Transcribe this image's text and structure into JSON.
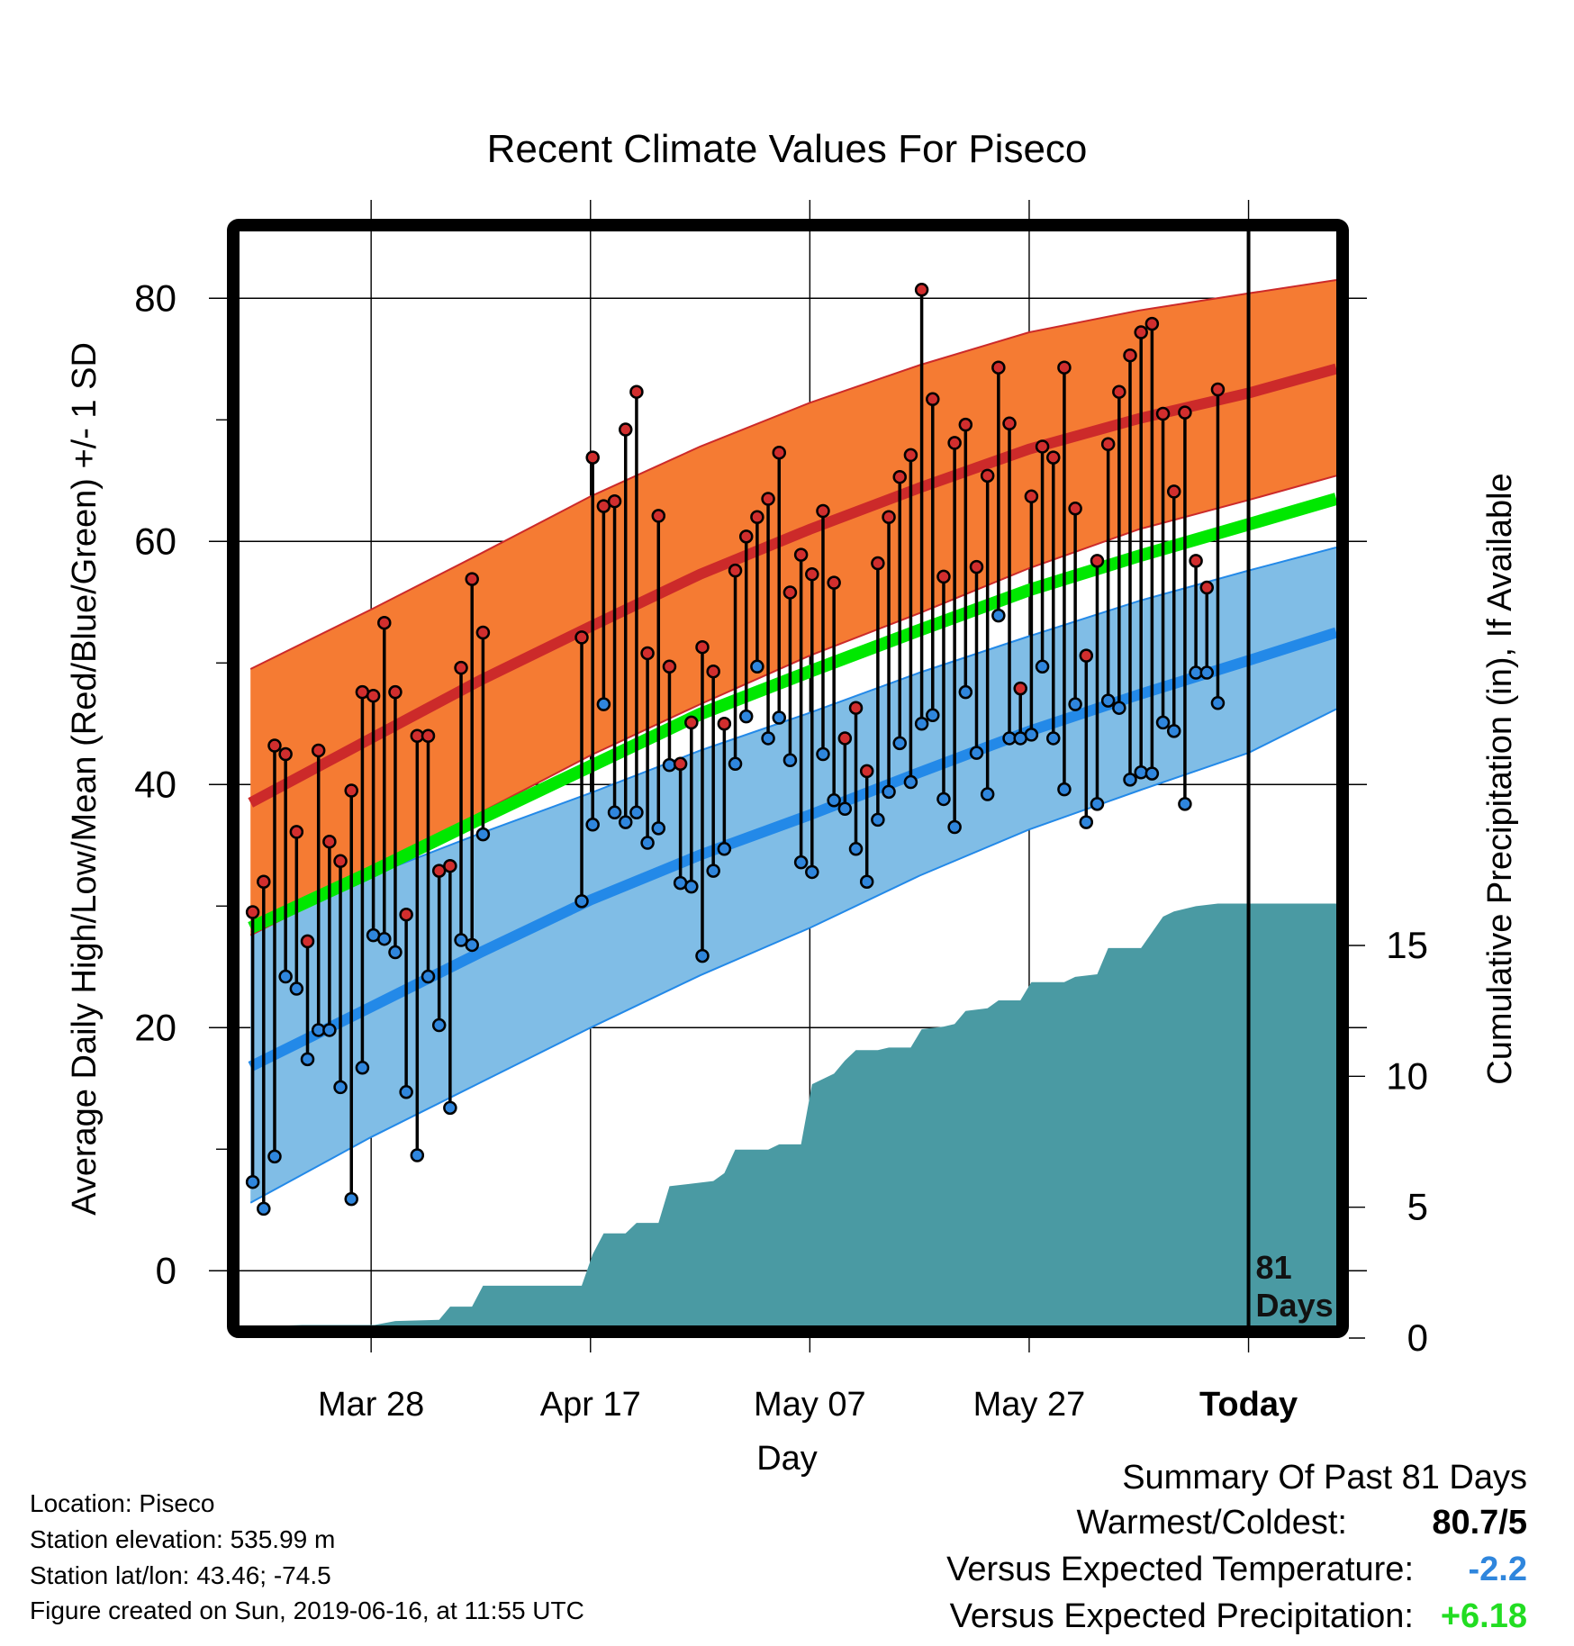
{
  "chart_data": {
    "type": "line",
    "title": "Recent Climate Values For Piseco",
    "xlabel": "Day",
    "ylabel": "Average Daily High/Low/Mean (Red/Blue/Green) +/- 1 SD",
    "y2label": "Cumulative Precipitation (in), If Available",
    "x_range_days": [
      -92,
      8
    ],
    "ylim": [
      -4.5,
      85.5
    ],
    "y2lim": [
      0,
      20
    ],
    "x_ticks": [
      {
        "day": -80,
        "label": "Mar 28"
      },
      {
        "day": -60,
        "label": "Apr 17"
      },
      {
        "day": -40,
        "label": "May 07"
      },
      {
        "day": -20,
        "label": "May 27"
      },
      {
        "day": 0,
        "label": "Today"
      }
    ],
    "y_ticks": [
      0,
      20,
      40,
      60,
      80
    ],
    "y_minor_ticks": [
      10,
      30,
      50,
      70
    ],
    "y2_ticks": [
      0,
      5,
      10,
      15
    ],
    "grid": true,
    "today_annotation": "81\nDays",
    "normal_high": [
      {
        "day": -91,
        "mean": 38.5,
        "sd_low": 27.6,
        "sd_high": 49.5
      },
      {
        "day": -80,
        "mean": 43.8,
        "sd_low": 32.6,
        "sd_high": 54.4
      },
      {
        "day": -70,
        "mean": 48.6,
        "sd_low": 37.7,
        "sd_high": 59.0
      },
      {
        "day": -60,
        "mean": 53.0,
        "sd_low": 42.4,
        "sd_high": 63.7
      },
      {
        "day": -50,
        "mean": 57.3,
        "sd_low": 46.6,
        "sd_high": 67.8
      },
      {
        "day": -40,
        "mean": 61.0,
        "sd_low": 50.6,
        "sd_high": 71.4
      },
      {
        "day": -30,
        "mean": 64.4,
        "sd_low": 54.1,
        "sd_high": 74.5
      },
      {
        "day": -20,
        "mean": 67.6,
        "sd_low": 57.8,
        "sd_high": 77.2
      },
      {
        "day": -10,
        "mean": 70.1,
        "sd_low": 61.0,
        "sd_high": 79.0
      },
      {
        "day": 0,
        "mean": 72.2,
        "sd_low": 63.4,
        "sd_high": 80.4
      },
      {
        "day": 8,
        "mean": 74.2,
        "sd_low": 65.4,
        "sd_high": 81.5
      }
    ],
    "normal_low": [
      {
        "day": -91,
        "mean": 16.8,
        "sd_low": 5.6,
        "sd_high": 27.9
      },
      {
        "day": -80,
        "mean": 21.7,
        "sd_low": 11.0,
        "sd_high": 32.5
      },
      {
        "day": -70,
        "mean": 26.2,
        "sd_low": 15.5,
        "sd_high": 36.0
      },
      {
        "day": -60,
        "mean": 30.5,
        "sd_low": 20.0,
        "sd_high": 39.3
      },
      {
        "day": -50,
        "mean": 34.2,
        "sd_low": 24.3,
        "sd_high": 42.8
      },
      {
        "day": -40,
        "mean": 37.5,
        "sd_low": 28.2,
        "sd_high": 45.9
      },
      {
        "day": -30,
        "mean": 41.0,
        "sd_low": 32.5,
        "sd_high": 49.2
      },
      {
        "day": -20,
        "mean": 44.4,
        "sd_low": 36.3,
        "sd_high": 52.2
      },
      {
        "day": -10,
        "mean": 47.4,
        "sd_low": 39.5,
        "sd_high": 55.1
      },
      {
        "day": 0,
        "mean": 50.2,
        "sd_low": 42.6,
        "sd_high": 57.6
      },
      {
        "day": 8,
        "mean": 52.5,
        "sd_low": 46.2,
        "sd_high": 59.5
      }
    ],
    "normal_mean": [
      {
        "day": -91,
        "value": 28.2
      },
      {
        "day": -80,
        "value": 32.8
      },
      {
        "day": -70,
        "value": 37.2
      },
      {
        "day": -60,
        "value": 41.5
      },
      {
        "day": -50,
        "value": 45.8
      },
      {
        "day": -40,
        "value": 49.3
      },
      {
        "day": -30,
        "value": 52.7
      },
      {
        "day": -20,
        "value": 56.0
      },
      {
        "day": -10,
        "value": 58.8
      },
      {
        "day": 0,
        "value": 61.4
      },
      {
        "day": 8,
        "value": 63.5
      }
    ],
    "daily": [
      {
        "day": -90.8,
        "high": 29.5,
        "low": 7.3
      },
      {
        "day": -89.8,
        "high": 32.0,
        "low": 5.1
      },
      {
        "day": -88.8,
        "high": 43.2,
        "low": 9.4
      },
      {
        "day": -87.8,
        "high": 42.5,
        "low": 24.2
      },
      {
        "day": -86.8,
        "high": 36.1,
        "low": 23.2
      },
      {
        "day": -85.8,
        "high": 27.1,
        "low": 17.4
      },
      {
        "day": -84.8,
        "high": 42.8,
        "low": 19.8
      },
      {
        "day": -83.8,
        "high": 35.3,
        "low": 19.8
      },
      {
        "day": -82.8,
        "high": 33.7,
        "low": 15.1
      },
      {
        "day": -81.8,
        "high": 39.5,
        "low": 5.9
      },
      {
        "day": -80.8,
        "high": 47.6,
        "low": 16.7
      },
      {
        "day": -79.8,
        "high": 47.3,
        "low": 27.6
      },
      {
        "day": -78.8,
        "high": 53.3,
        "low": 27.3
      },
      {
        "day": -77.8,
        "high": 47.6,
        "low": 26.2
      },
      {
        "day": -76.8,
        "high": 29.3,
        "low": 14.7
      },
      {
        "day": -75.8,
        "high": 44.0,
        "low": 9.5
      },
      {
        "day": -74.8,
        "high": 44.0,
        "low": 24.2
      },
      {
        "day": -73.8,
        "high": 32.9,
        "low": 20.2
      },
      {
        "day": -72.8,
        "high": 33.3,
        "low": 13.4
      },
      {
        "day": -71.8,
        "high": 49.6,
        "low": 27.2
      },
      {
        "day": -70.8,
        "high": 56.9,
        "low": 26.8
      },
      {
        "day": -69.8,
        "high": 52.5,
        "low": 35.9
      },
      {
        "day": -60.8,
        "high": 52.1,
        "low": 30.4
      },
      {
        "day": -59.8,
        "high": 66.9,
        "low": 36.7
      },
      {
        "day": -58.8,
        "high": 62.9,
        "low": 46.6
      },
      {
        "day": -57.8,
        "high": 63.3,
        "low": 37.7
      },
      {
        "day": -56.8,
        "high": 69.2,
        "low": 36.9
      },
      {
        "day": -55.8,
        "high": 72.3,
        "low": 37.7
      },
      {
        "day": -54.8,
        "high": 50.8,
        "low": 35.2
      },
      {
        "day": -53.8,
        "high": 62.1,
        "low": 36.4
      },
      {
        "day": -52.8,
        "high": 49.7,
        "low": 41.6
      },
      {
        "day": -51.8,
        "high": 41.7,
        "low": 31.9
      },
      {
        "day": -50.8,
        "high": 45.1,
        "low": 31.6
      },
      {
        "day": -49.8,
        "high": 51.3,
        "low": 25.9
      },
      {
        "day": -48.8,
        "high": 49.3,
        "low": 32.9
      },
      {
        "day": -47.8,
        "high": 45.0,
        "low": 34.7
      },
      {
        "day": -46.8,
        "high": 57.6,
        "low": 41.7
      },
      {
        "day": -45.8,
        "high": 60.4,
        "low": 45.6
      },
      {
        "day": -44.8,
        "high": 62.0,
        "low": 49.7
      },
      {
        "day": -43.8,
        "high": 63.5,
        "low": 43.8
      },
      {
        "day": -42.8,
        "high": 67.3,
        "low": 45.5
      },
      {
        "day": -41.8,
        "high": 55.8,
        "low": 42.0
      },
      {
        "day": -40.8,
        "high": 58.9,
        "low": 33.6
      },
      {
        "day": -39.8,
        "high": 57.3,
        "low": 32.8
      },
      {
        "day": -38.8,
        "high": 62.5,
        "low": 42.5
      },
      {
        "day": -37.8,
        "high": 56.6,
        "low": 38.7
      },
      {
        "day": -36.8,
        "high": 43.8,
        "low": 38.0
      },
      {
        "day": -35.8,
        "high": 46.3,
        "low": 34.7
      },
      {
        "day": -34.8,
        "high": 41.1,
        "low": 32.0
      },
      {
        "day": -33.8,
        "high": 58.2,
        "low": 37.1
      },
      {
        "day": -32.8,
        "high": 62.0,
        "low": 39.4
      },
      {
        "day": -31.8,
        "high": 65.3,
        "low": 43.4
      },
      {
        "day": -30.8,
        "high": 67.1,
        "low": 40.2
      },
      {
        "day": -29.8,
        "high": 80.7,
        "low": 45.0
      },
      {
        "day": -28.8,
        "high": 71.7,
        "low": 45.7
      },
      {
        "day": -27.8,
        "high": 57.1,
        "low": 38.8
      },
      {
        "day": -26.8,
        "high": 68.1,
        "low": 36.5
      },
      {
        "day": -25.8,
        "high": 69.6,
        "low": 47.6
      },
      {
        "day": -24.8,
        "high": 57.9,
        "low": 42.6
      },
      {
        "day": -23.8,
        "high": 65.4,
        "low": 39.2
      },
      {
        "day": -22.8,
        "high": 74.3,
        "low": 53.9
      },
      {
        "day": -21.8,
        "high": 69.7,
        "low": 43.8
      },
      {
        "day": -20.8,
        "high": 47.9,
        "low": 43.8
      },
      {
        "day": -19.8,
        "high": 63.7,
        "low": 44.1
      },
      {
        "day": -18.8,
        "high": 67.8,
        "low": 49.7
      },
      {
        "day": -17.8,
        "high": 66.9,
        "low": 43.8
      },
      {
        "day": -16.8,
        "high": 74.3,
        "low": 39.6
      },
      {
        "day": -15.8,
        "high": 62.7,
        "low": 46.6
      },
      {
        "day": -14.8,
        "high": 50.6,
        "low": 36.9
      },
      {
        "day": -13.8,
        "high": 58.4,
        "low": 38.4
      },
      {
        "day": -12.8,
        "high": 68.0,
        "low": 46.9
      },
      {
        "day": -11.8,
        "high": 72.3,
        "low": 46.3
      },
      {
        "day": -10.8,
        "high": 75.3,
        "low": 40.4
      },
      {
        "day": -9.8,
        "high": 77.2,
        "low": 41.0
      },
      {
        "day": -8.8,
        "high": 77.9,
        "low": 40.9
      },
      {
        "day": -7.8,
        "high": 70.5,
        "low": 45.1
      },
      {
        "day": -6.8,
        "high": 64.1,
        "low": 44.4
      },
      {
        "day": -5.8,
        "high": 70.6,
        "low": 38.4
      },
      {
        "day": -4.8,
        "high": 58.4,
        "low": 49.2
      },
      {
        "day": -3.8,
        "high": 56.2,
        "low": 49.2
      },
      {
        "day": -2.8,
        "high": 72.5,
        "low": 46.7
      }
    ],
    "precip_cumulative": [
      {
        "day": -91,
        "value": 0.0
      },
      {
        "day": -87.5,
        "value": 0.0
      },
      {
        "day": -86.3,
        "value": 0.5
      },
      {
        "day": -79.7,
        "value": 0.5
      },
      {
        "day": -77.8,
        "value": 0.65
      },
      {
        "day": -73.8,
        "value": 0.7
      },
      {
        "day": -72.8,
        "value": 1.2
      },
      {
        "day": -70.8,
        "value": 1.2
      },
      {
        "day": -69.8,
        "value": 2.0
      },
      {
        "day": -60.8,
        "value": 2.0
      },
      {
        "day": -59.8,
        "value": 3.2
      },
      {
        "day": -58.8,
        "value": 4.0
      },
      {
        "day": -56.8,
        "value": 4.0
      },
      {
        "day": -55.8,
        "value": 4.4
      },
      {
        "day": -53.8,
        "value": 4.4
      },
      {
        "day": -52.8,
        "value": 5.8
      },
      {
        "day": -48.8,
        "value": 6.0
      },
      {
        "day": -47.8,
        "value": 6.3
      },
      {
        "day": -46.8,
        "value": 7.2
      },
      {
        "day": -43.8,
        "value": 7.2
      },
      {
        "day": -42.8,
        "value": 7.4
      },
      {
        "day": -40.8,
        "value": 7.4
      },
      {
        "day": -39.8,
        "value": 9.7
      },
      {
        "day": -37.8,
        "value": 10.1
      },
      {
        "day": -36.8,
        "value": 10.6
      },
      {
        "day": -35.8,
        "value": 11.0
      },
      {
        "day": -33.8,
        "value": 11.0
      },
      {
        "day": -32.8,
        "value": 11.1
      },
      {
        "day": -30.8,
        "value": 11.1
      },
      {
        "day": -29.8,
        "value": 11.8
      },
      {
        "day": -27.8,
        "value": 11.9
      },
      {
        "day": -26.8,
        "value": 12.0
      },
      {
        "day": -25.8,
        "value": 12.5
      },
      {
        "day": -23.8,
        "value": 12.6
      },
      {
        "day": -22.8,
        "value": 12.9
      },
      {
        "day": -20.8,
        "value": 12.9
      },
      {
        "day": -19.8,
        "value": 13.6
      },
      {
        "day": -16.8,
        "value": 13.6
      },
      {
        "day": -15.8,
        "value": 13.8
      },
      {
        "day": -13.8,
        "value": 13.9
      },
      {
        "day": -12.8,
        "value": 14.9
      },
      {
        "day": -9.8,
        "value": 14.9
      },
      {
        "day": -7.8,
        "value": 16.1
      },
      {
        "day": -6.8,
        "value": 16.3
      },
      {
        "day": -4.8,
        "value": 16.5
      },
      {
        "day": -2.8,
        "value": 16.6
      },
      {
        "day": 8,
        "value": 16.6
      }
    ],
    "colors": {
      "high_band": "#f57b33",
      "high_line": "#cc2a2a",
      "low_band": "#80bde6",
      "low_line": "#2389e8",
      "mean_line": "#00e800",
      "precip": "#4a9aa3",
      "high_marker": "#d12e2e",
      "low_marker": "#2f86dd"
    }
  },
  "info": {
    "location": "Location: Piseco",
    "elevation": "Station elevation: 535.99 m",
    "latlon": "Station lat/lon: 43.46; -74.5",
    "created": "Figure created on Sun, 2019-06-16, at 11:55 UTC"
  },
  "summary": {
    "heading": "Summary Of Past 81 Days",
    "warm_cold_label": "Warmest/Coldest:",
    "warm_cold_value": "80.7/5",
    "temp_label": "Versus Expected Temperature:",
    "temp_value": "-2.2",
    "temp_color": "#2f86dd",
    "precip_label": "Versus Expected Precipitation:",
    "precip_value": "+6.18",
    "precip_color": "#22dd22"
  }
}
